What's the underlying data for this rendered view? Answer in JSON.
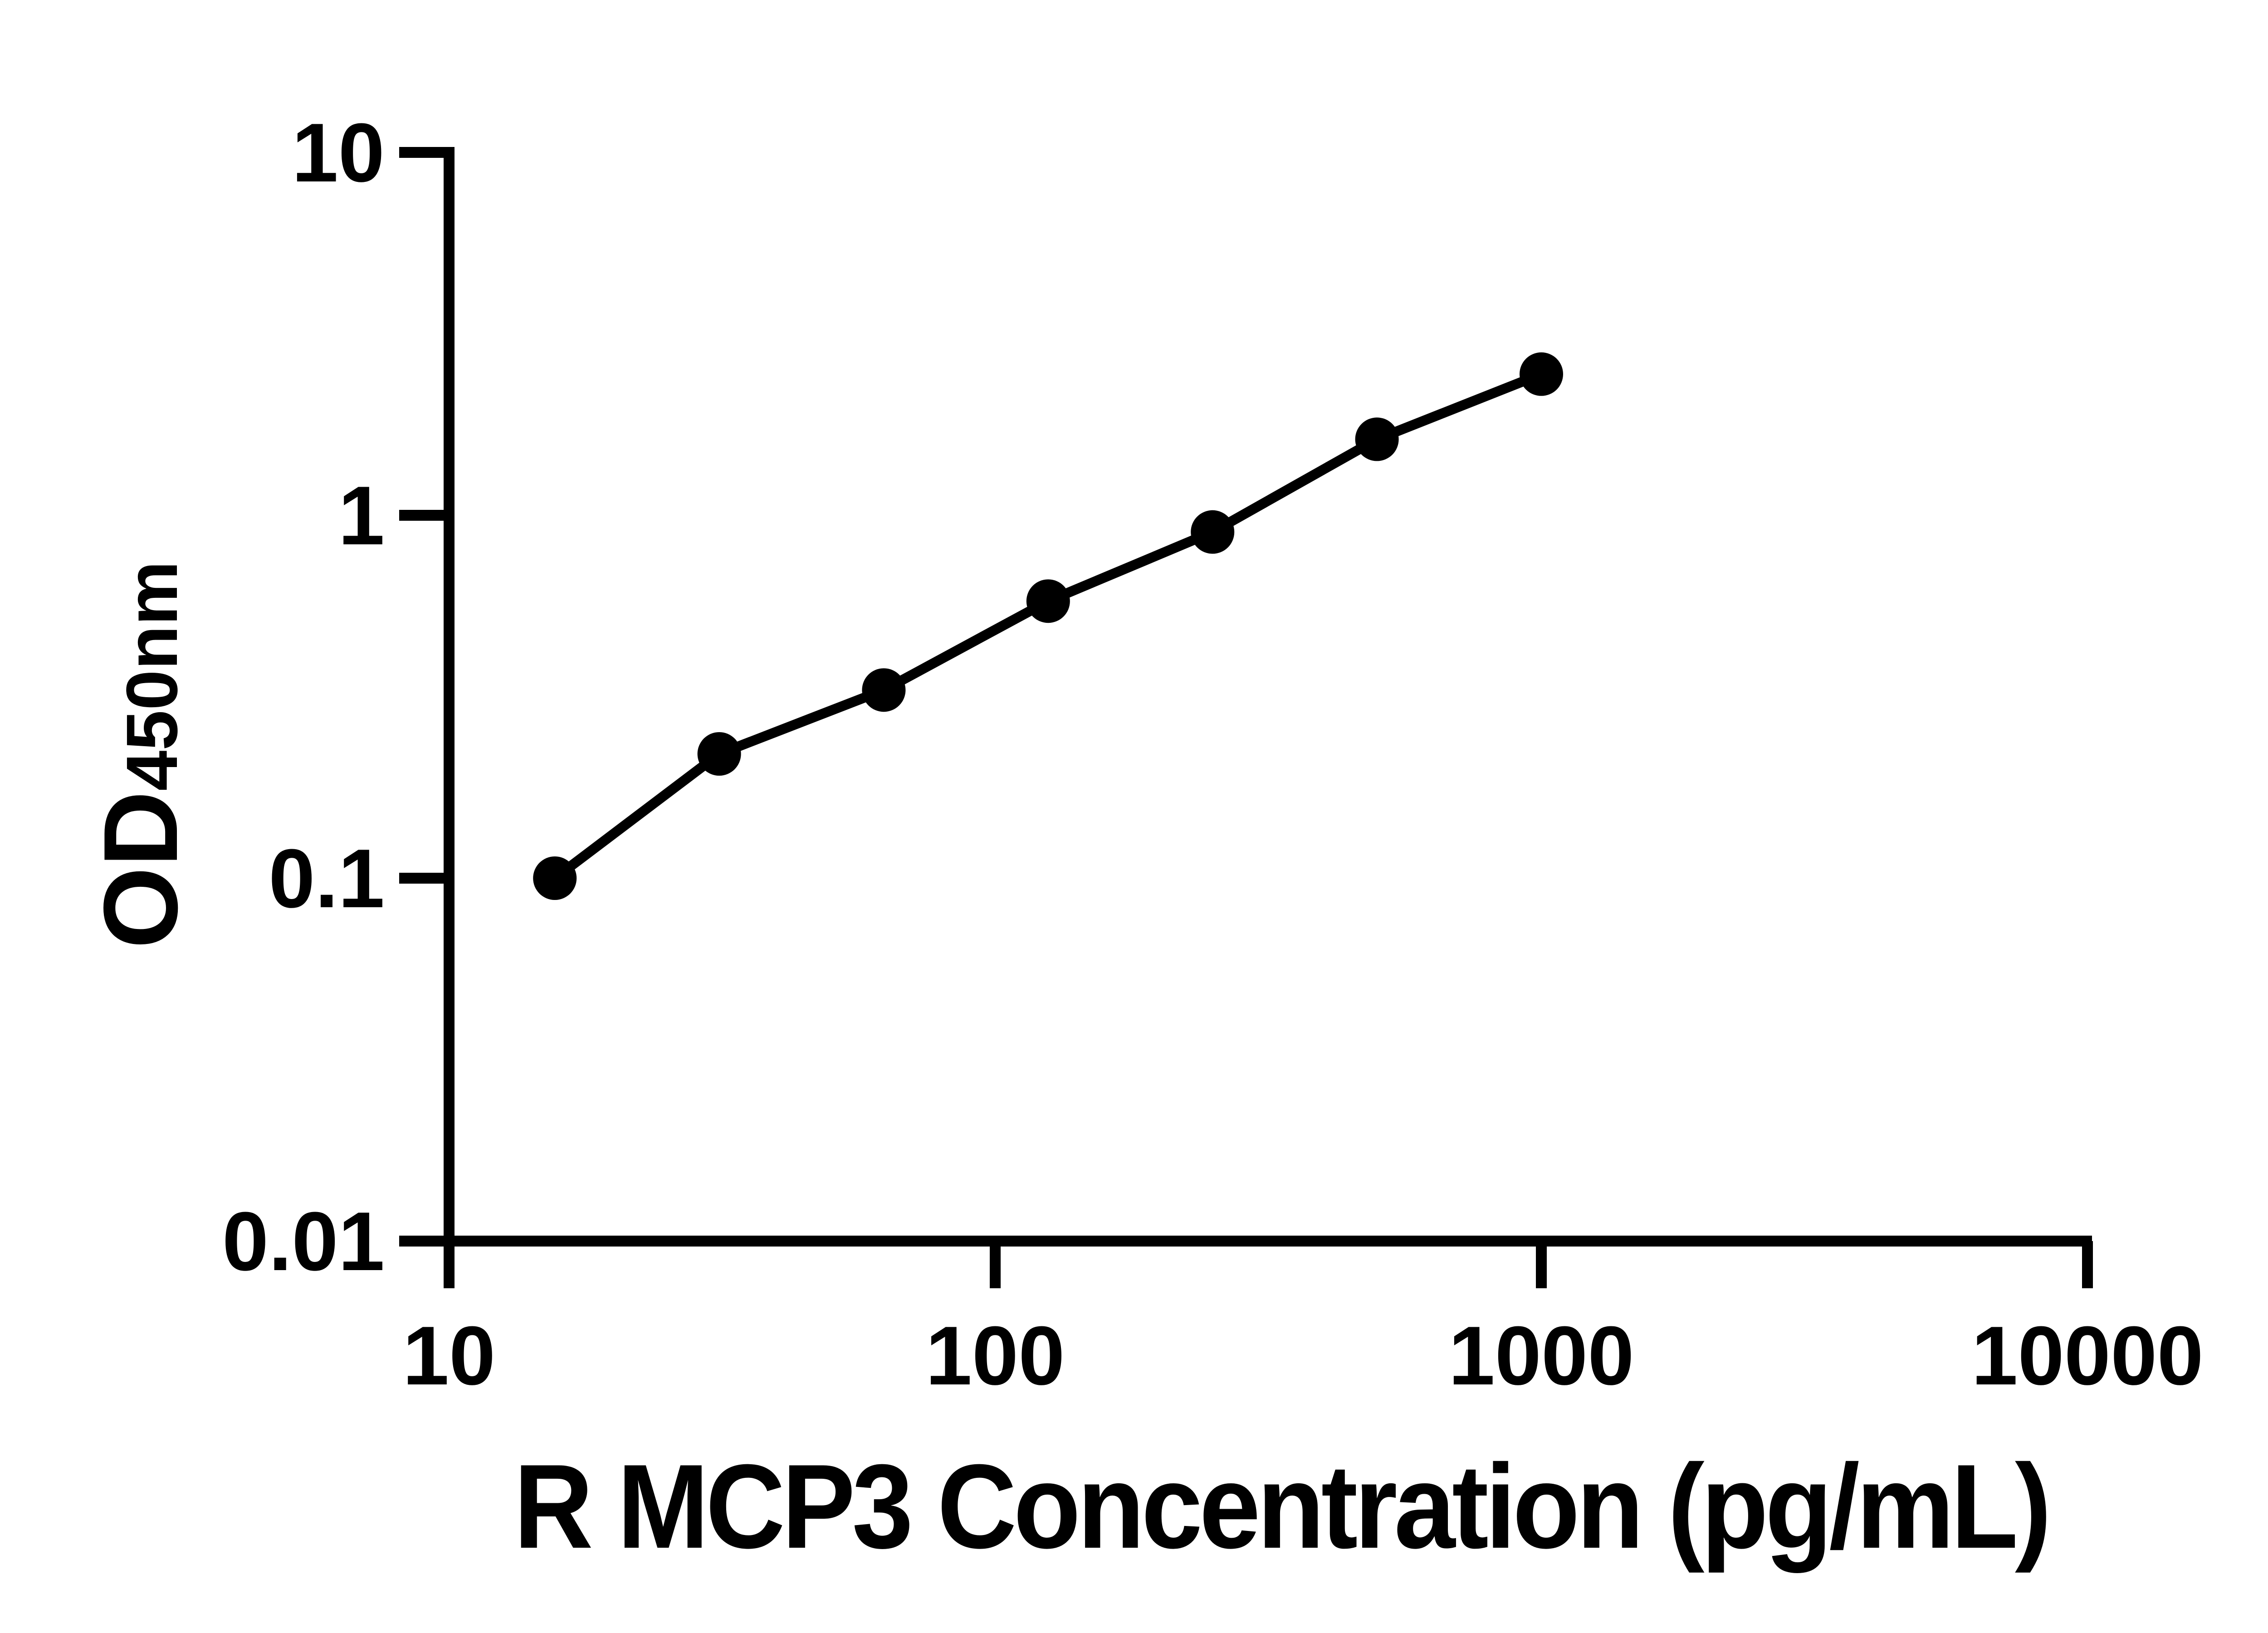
{
  "figure": {
    "background": "#ffffff",
    "ink_color": "#000000"
  },
  "chart_data": {
    "type": "scatter",
    "title": "",
    "xlabel": "R MCP3 Concentration (pg/mL)",
    "ylabel_main": "OD",
    "ylabel_sub": "450nm",
    "x_scale": "log",
    "y_scale": "log",
    "xlim": [
      10,
      10000
    ],
    "ylim": [
      0.01,
      10
    ],
    "grid": false,
    "legend": "none",
    "x_ticks": [
      {
        "value": 10,
        "label": "10"
      },
      {
        "value": 100,
        "label": "100"
      },
      {
        "value": 1000,
        "label": "1000"
      },
      {
        "value": 10000,
        "label": "10000"
      }
    ],
    "y_ticks": [
      {
        "value": 10,
        "label": "10"
      },
      {
        "value": 1,
        "label": "1"
      },
      {
        "value": 0.1,
        "label": "0.1"
      },
      {
        "value": 0.01,
        "label": "0.01"
      }
    ],
    "series": [
      {
        "name": "standard-curve",
        "marker": "filled-circle",
        "line": "solid",
        "color": "#000000",
        "points": [
          {
            "x": 15.625,
            "y": 0.1
          },
          {
            "x": 31.25,
            "y": 0.22
          },
          {
            "x": 62.5,
            "y": 0.33
          },
          {
            "x": 125,
            "y": 0.58
          },
          {
            "x": 250,
            "y": 0.9
          },
          {
            "x": 500,
            "y": 1.62
          },
          {
            "x": 1000,
            "y": 2.45
          }
        ]
      }
    ]
  }
}
